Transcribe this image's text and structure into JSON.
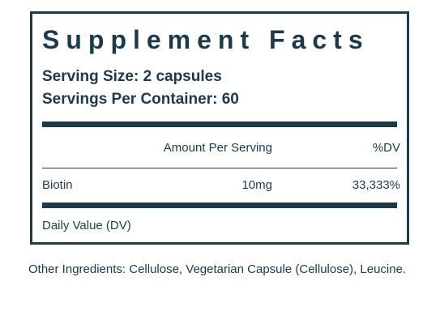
{
  "label": {
    "title": "Supplement Facts",
    "serving_size": "Serving Size: 2 capsules",
    "servings_per_container": "Servings Per Container: 60",
    "header": {
      "amount_per_serving": "Amount Per Serving",
      "dv": "%DV"
    },
    "rows": [
      {
        "name": "Biotin",
        "amount": "10mg",
        "dv": "33,333%"
      }
    ],
    "footnote": "Daily Value (DV)"
  },
  "other_ingredients": "Other Ingredients: Cellulose, Vegetarian Capsule (Cellulose), Leucine.",
  "colors": {
    "ink": "#1c3a4a",
    "background": "#ffffff"
  }
}
